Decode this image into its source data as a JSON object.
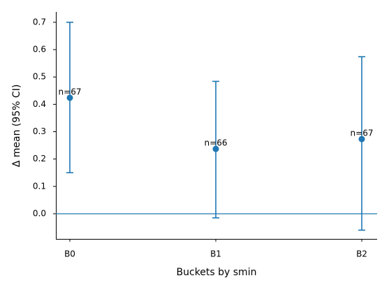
{
  "chart_data": {
    "type": "errorbar",
    "xlabel": "Buckets by smin",
    "ylabel": "Δ mean (95% CI)",
    "categories": [
      "B0",
      "B1",
      "B2"
    ],
    "series": [
      {
        "color": "#1f77b4",
        "values": [
          0.424,
          0.237,
          0.273
        ],
        "ci_low": [
          0.15,
          -0.015,
          -0.06
        ],
        "ci_high": [
          0.7,
          0.484,
          0.574
        ],
        "annotations": [
          "n=67",
          "n=66",
          "n=67"
        ]
      }
    ],
    "reference_line": 0,
    "ylim": [
      -0.092,
      0.738
    ],
    "yticks": [
      {
        "value": 0,
        "label": "0.0"
      },
      0.1,
      0.2,
      0.3,
      0.4,
      0.5,
      0.6,
      0.7
    ]
  }
}
